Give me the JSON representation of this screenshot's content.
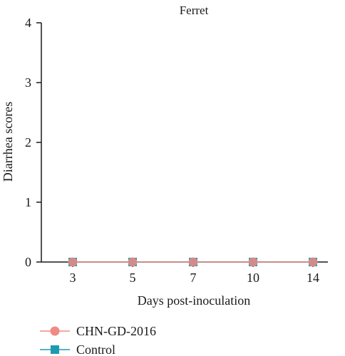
{
  "chart_data": {
    "type": "line",
    "title": "Ferret",
    "xlabel": "Days post-inoculation",
    "ylabel": "Diarrhea scores",
    "categories": [
      "3",
      "5",
      "7",
      "10",
      "14"
    ],
    "ylim": [
      0,
      4
    ],
    "yticks": [
      "0",
      "1",
      "2",
      "3",
      "4"
    ],
    "legend_position": "bottom-left",
    "series": [
      {
        "name": "CHN-GD-2016",
        "values": [
          0,
          0,
          0,
          0,
          0
        ],
        "color": "#f08a85",
        "marker": "circle"
      },
      {
        "name": "Control",
        "values": [
          0,
          0,
          0,
          0,
          0
        ],
        "color": "#1f9ab0",
        "marker": "square"
      }
    ]
  }
}
